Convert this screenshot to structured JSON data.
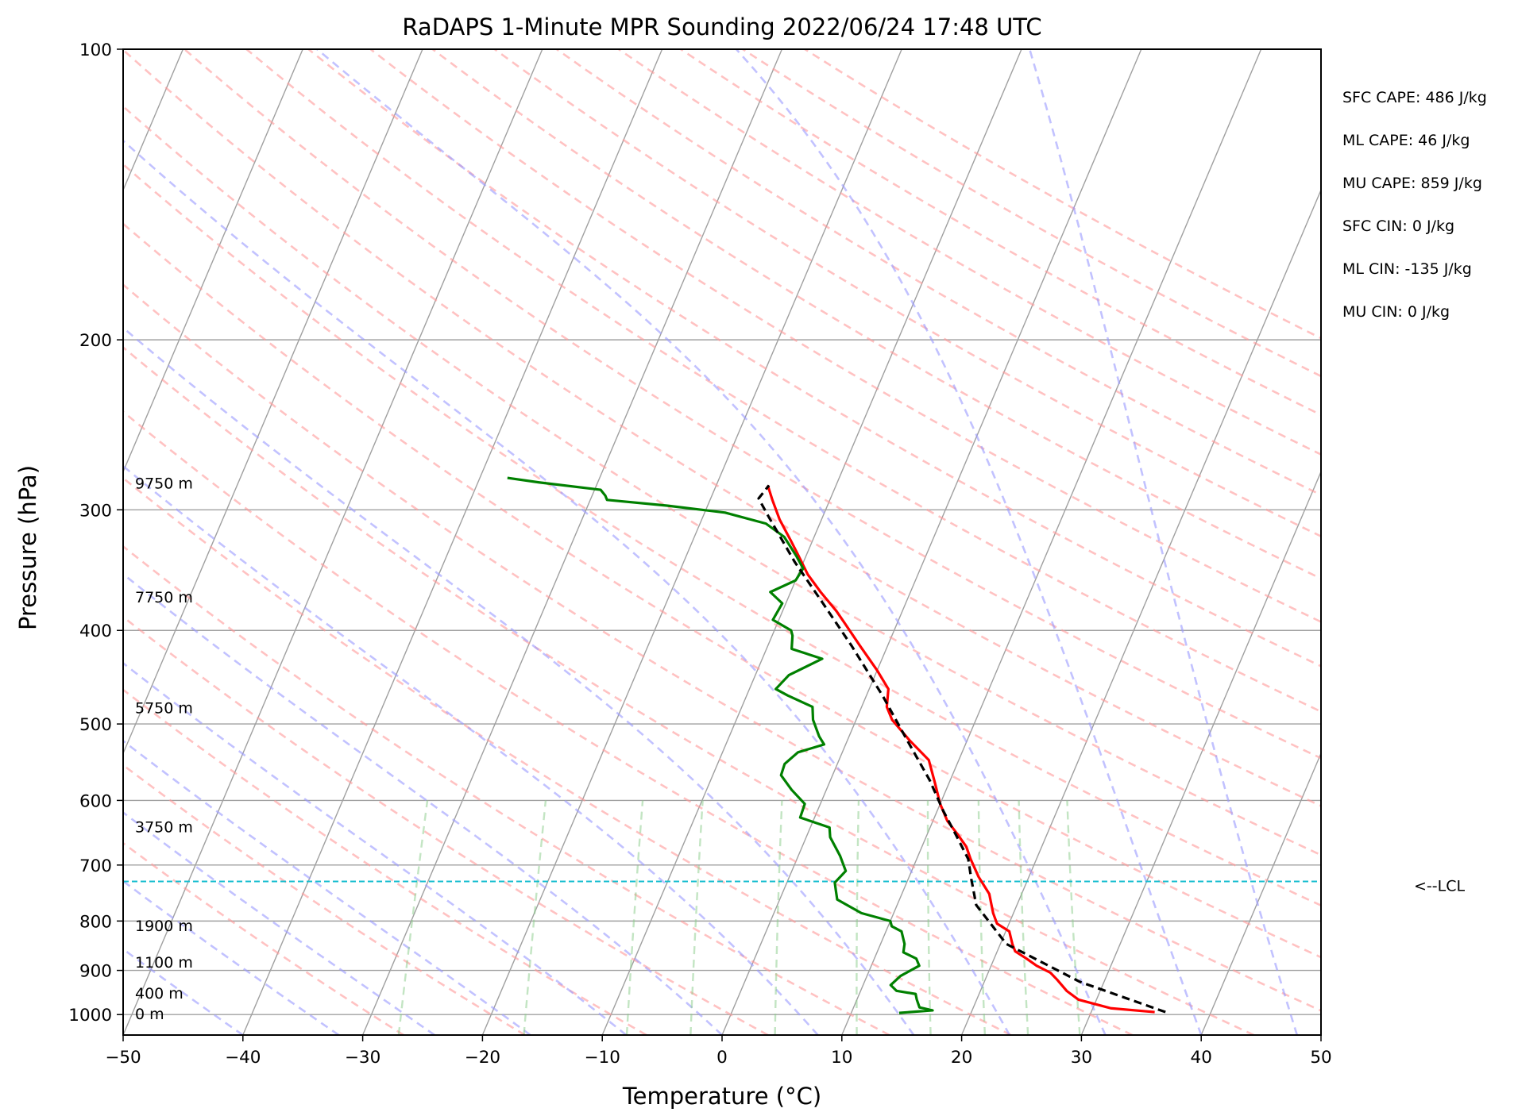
{
  "chart_data": {
    "type": "skew-t",
    "title": "RaDAPS 1-Minute MPR Sounding 2022/06/24 17:48 UTC",
    "xlabel": "Temperature (°C)",
    "ylabel": "Pressure (hPa)",
    "xlim": [
      -50,
      50
    ],
    "ylim": [
      1050,
      100
    ],
    "x_ticks": [
      -50,
      -40,
      -30,
      -20,
      -10,
      0,
      10,
      20,
      30,
      40,
      50
    ],
    "x_tick_labels": [
      "−50",
      "−40",
      "−30",
      "−20",
      "−10",
      "0",
      "10",
      "20",
      "30",
      "40",
      "50"
    ],
    "y_ticks": [
      100,
      200,
      300,
      400,
      500,
      600,
      700,
      800,
      900,
      1000
    ],
    "y_tick_labels": [
      "100",
      "200",
      "300",
      "400",
      "500",
      "600",
      "700",
      "800",
      "900",
      "1000"
    ],
    "pressure_scale": "log",
    "grid": true,
    "colors": {
      "temperature": "#ff0000",
      "dewpoint": "#008000",
      "parcel": "#000000",
      "lcl": "#17becf",
      "dry_adiabats": "#ff9999",
      "moist_adiabats": "#9999ff",
      "mixing_ratio": "#88cc88",
      "isotherms": "#a0a0a0"
    },
    "series": [
      {
        "key": "temperature",
        "style": "solid",
        "points": [
          [
            35.3,
            994
          ],
          [
            31.5,
            985
          ],
          [
            28.5,
            965
          ],
          [
            27.2,
            945
          ],
          [
            26,
            920
          ],
          [
            25.2,
            905
          ],
          [
            23.8,
            890
          ],
          [
            22.7,
            875
          ],
          [
            21.5,
            860
          ],
          [
            21.0,
            845
          ],
          [
            20.3,
            820
          ],
          [
            19.0,
            805
          ],
          [
            18.3,
            785
          ],
          [
            17.3,
            750
          ],
          [
            15.8,
            720
          ],
          [
            14.5,
            690
          ],
          [
            13.7,
            670
          ],
          [
            12.5,
            650
          ],
          [
            11.2,
            630
          ],
          [
            10.0,
            605
          ],
          [
            8.8,
            575
          ],
          [
            7.5,
            545
          ],
          [
            5.2,
            520
          ],
          [
            3.0,
            495
          ],
          [
            2.1,
            480
          ],
          [
            1.6,
            460
          ],
          [
            0,
            440
          ],
          [
            -2.3,
            415
          ],
          [
            -4.2,
            395
          ],
          [
            -5.5,
            382
          ],
          [
            -7.5,
            365
          ],
          [
            -9.2,
            350
          ],
          [
            -10.8,
            333
          ],
          [
            -11.8,
            323
          ],
          [
            -13.5,
            307
          ],
          [
            -14.8,
            293
          ],
          [
            -15.7,
            283
          ]
        ]
      },
      {
        "key": "dewpoint",
        "style": "solid",
        "points": [
          [
            14.0,
            996
          ],
          [
            16.7,
            990
          ],
          [
            15.5,
            983
          ],
          [
            15.0,
            965
          ],
          [
            14.7,
            952
          ],
          [
            13.0,
            945
          ],
          [
            12.3,
            932
          ],
          [
            12.8,
            912
          ],
          [
            14.0,
            890
          ],
          [
            13.5,
            875
          ],
          [
            12.2,
            862
          ],
          [
            12.0,
            845
          ],
          [
            11.3,
            820
          ],
          [
            10.3,
            810
          ],
          [
            10.0,
            800
          ],
          [
            7.3,
            785
          ],
          [
            4.8,
            760
          ],
          [
            4.4,
            745
          ],
          [
            4.0,
            730
          ],
          [
            4.5,
            710
          ],
          [
            3.5,
            685
          ],
          [
            2.0,
            655
          ],
          [
            1.6,
            640
          ],
          [
            -1.2,
            625
          ],
          [
            -1.3,
            605
          ],
          [
            -2.9,
            585
          ],
          [
            -4.3,
            565
          ],
          [
            -4.4,
            550
          ],
          [
            -3.7,
            535
          ],
          [
            -1.8,
            525
          ],
          [
            -2.5,
            515
          ],
          [
            -3.6,
            495
          ],
          [
            -4.1,
            480
          ],
          [
            -6.6,
            467
          ],
          [
            -7.8,
            460
          ],
          [
            -7.2,
            445
          ],
          [
            -5.0,
            428
          ],
          [
            -7.9,
            418
          ],
          [
            -8.3,
            405
          ],
          [
            -8.6,
            400
          ],
          [
            -10.5,
            390
          ],
          [
            -10.3,
            375
          ],
          [
            -11.7,
            365
          ],
          [
            -10.0,
            355
          ],
          [
            -9.8,
            345
          ],
          [
            -10.8,
            335
          ],
          [
            -12.5,
            320
          ],
          [
            -14.5,
            310
          ],
          [
            -18.3,
            302
          ],
          [
            -23.4,
            297
          ],
          [
            -28.6,
            293
          ],
          [
            -28.9,
            290
          ],
          [
            -29.5,
            286
          ],
          [
            -34.9,
            281
          ],
          [
            -37.7,
            278
          ]
        ]
      },
      {
        "key": "parcel",
        "style": "dashed",
        "points": [
          [
            36.2,
            994
          ],
          [
            28.0,
            925
          ],
          [
            20.5,
            845
          ],
          [
            16.6,
            770
          ],
          [
            15.6,
            735
          ],
          [
            15.3,
            725
          ],
          [
            14.3,
            690
          ],
          [
            12.5,
            653
          ],
          [
            10.5,
            615
          ],
          [
            8.3,
            572
          ],
          [
            5.0,
            520
          ],
          [
            1.4,
            468
          ],
          [
            -3.0,
            415
          ],
          [
            -6.9,
            375
          ],
          [
            -10.7,
            340
          ],
          [
            -14.4,
            306
          ],
          [
            -16.0,
            292
          ],
          [
            -15.6,
            283
          ]
        ]
      }
    ],
    "lcl": {
      "pressure": 728,
      "label": "<--LCL"
    },
    "height_labels": [
      {
        "text": "0 m",
        "pressure": 1000
      },
      {
        "text": "400 m",
        "pressure": 952
      },
      {
        "text": "1100 m",
        "pressure": 884
      },
      {
        "text": "1900 m",
        "pressure": 810
      },
      {
        "text": "3750 m",
        "pressure": 640
      },
      {
        "text": "5750 m",
        "pressure": 482
      },
      {
        "text": "7750 m",
        "pressure": 370
      },
      {
        "text": "9750 m",
        "pressure": 282
      }
    ],
    "stats": [
      "SFC CAPE: 486 J/kg",
      "ML CAPE: 46 J/kg",
      "MU CAPE: 859 J/kg",
      "SFC CIN: 0 J/kg",
      "ML CIN: -135 J/kg",
      "MU CIN: 0 J/kg"
    ]
  }
}
